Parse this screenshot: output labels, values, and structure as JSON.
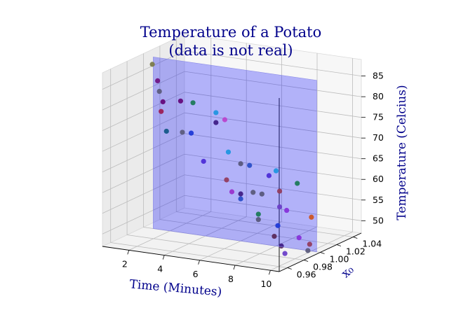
{
  "chart_data": {
    "type": "scatter",
    "projection": "3d",
    "title": [
      "Temperature of a Potato",
      "(data is not real)"
    ],
    "xlabel": "Time (Minutes)",
    "ylabel": "x₀",
    "zlabel": "Temperature (Celcius)",
    "xlim": [
      0.5,
      10.5
    ],
    "ylim": [
      0.95,
      1.05
    ],
    "zlim": [
      47,
      89
    ],
    "xticks": [
      2,
      4,
      6,
      8,
      10
    ],
    "xtick_labels": [
      "2",
      "4",
      "6",
      "8",
      "10"
    ],
    "yticks": [
      0.96,
      0.98,
      1.0,
      1.02,
      1.04
    ],
    "ytick_labels": [
      "0.96",
      "0.98",
      "1.00",
      "1.02",
      "1.04"
    ],
    "zticks": [
      50,
      55,
      60,
      65,
      70,
      75,
      80,
      85
    ],
    "ztick_labels": [
      "50",
      "55",
      "60",
      "65",
      "70",
      "75",
      "80",
      "85"
    ],
    "grid": true,
    "plane": {
      "y": 1.0,
      "color": "#0000ff",
      "opacity": 0.28
    },
    "points": [
      {
        "x": 1.0,
        "y": 1.0,
        "z": 86.7,
        "color": "#7b7b4b"
      },
      {
        "x": 1.3,
        "y": 1.0,
        "z": 82.9,
        "color": "#9b1d55"
      },
      {
        "x": 1.4,
        "y": 1.0,
        "z": 80.4,
        "color": "#5c5c7c"
      },
      {
        "x": 1.6,
        "y": 1.0,
        "z": 78.0,
        "color": "#8b0f4b"
      },
      {
        "x": 1.5,
        "y": 1.0,
        "z": 75.6,
        "color": "#9b1d55"
      },
      {
        "x": 2.6,
        "y": 1.0,
        "z": 78.8,
        "color": "#8b0f4b"
      },
      {
        "x": 3.3,
        "y": 1.0,
        "z": 78.8,
        "color": "#1e7a5a"
      },
      {
        "x": 1.8,
        "y": 1.0,
        "z": 71.0,
        "color": "#1e7a5a"
      },
      {
        "x": 2.7,
        "y": 1.0,
        "z": 71.3,
        "color": "#5c5c7c"
      },
      {
        "x": 3.2,
        "y": 1.0,
        "z": 71.4,
        "color": "#2a4fc8"
      },
      {
        "x": 4.6,
        "y": 1.0,
        "z": 77.2,
        "color": "#2196e0"
      },
      {
        "x": 4.6,
        "y": 1.0,
        "z": 74.8,
        "color": "#5a2a5a"
      },
      {
        "x": 5.1,
        "y": 1.0,
        "z": 75.8,
        "color": "#bb44cc"
      },
      {
        "x": 3.9,
        "y": 1.0,
        "z": 65.0,
        "color": "#6a3fc8"
      },
      {
        "x": 5.3,
        "y": 1.0,
        "z": 68.1,
        "color": "#2196e0"
      },
      {
        "x": 6.0,
        "y": 1.0,
        "z": 65.7,
        "color": "#7b7b4b"
      },
      {
        "x": 6.5,
        "y": 1.0,
        "z": 65.6,
        "color": "#2a4fc8"
      },
      {
        "x": 5.2,
        "y": 1.0,
        "z": 61.3,
        "color": "#cc5522"
      },
      {
        "x": 5.5,
        "y": 1.0,
        "z": 58.6,
        "color": "#9933cc"
      },
      {
        "x": 6.0,
        "y": 1.0,
        "z": 58.4,
        "color": "#5a2a5a"
      },
      {
        "x": 6.7,
        "y": 1.0,
        "z": 59.2,
        "color": "#5c5c7c"
      },
      {
        "x": 7.2,
        "y": 1.0,
        "z": 59.1,
        "color": "#7b7b4b"
      },
      {
        "x": 6.0,
        "y": 1.0,
        "z": 57.2,
        "color": "#2a4fc8"
      },
      {
        "x": 7.6,
        "y": 1.0,
        "z": 63.8,
        "color": "#6a3fc8"
      },
      {
        "x": 8.0,
        "y": 1.0,
        "z": 65.2,
        "color": "#2196e0"
      },
      {
        "x": 8.2,
        "y": 1.0,
        "z": 60.4,
        "color": "#cc5522"
      },
      {
        "x": 7.0,
        "y": 1.0,
        "z": 54.1,
        "color": "#1e7a5a"
      },
      {
        "x": 7.0,
        "y": 1.0,
        "z": 52.8,
        "color": "#7b7b4b"
      },
      {
        "x": 8.2,
        "y": 1.0,
        "z": 56.6,
        "color": "#6a3fc8"
      },
      {
        "x": 8.6,
        "y": 1.0,
        "z": 56.0,
        "color": "#bb44cc"
      },
      {
        "x": 9.2,
        "y": 1.0,
        "z": 62.9,
        "color": "#1e7a5a"
      },
      {
        "x": 8.1,
        "y": 1.0,
        "z": 52.0,
        "color": "#2a4fc8"
      },
      {
        "x": 7.9,
        "y": 1.0,
        "z": 49.3,
        "color": "#5a2a5a"
      },
      {
        "x": 8.3,
        "y": 1.0,
        "z": 47.2,
        "color": "#5a2a5a"
      },
      {
        "x": 8.5,
        "y": 1.0,
        "z": 45.5,
        "color": "#6a3fc8"
      },
      {
        "x": 9.3,
        "y": 1.0,
        "z": 49.8,
        "color": "#bb44cc"
      },
      {
        "x": 10.0,
        "y": 1.0,
        "z": 55.2,
        "color": "#cc5522"
      },
      {
        "x": 9.9,
        "y": 1.0,
        "z": 48.6,
        "color": "#cc5522"
      },
      {
        "x": 9.8,
        "y": 1.0,
        "z": 47.0,
        "color": "#5c5c7c"
      }
    ]
  }
}
